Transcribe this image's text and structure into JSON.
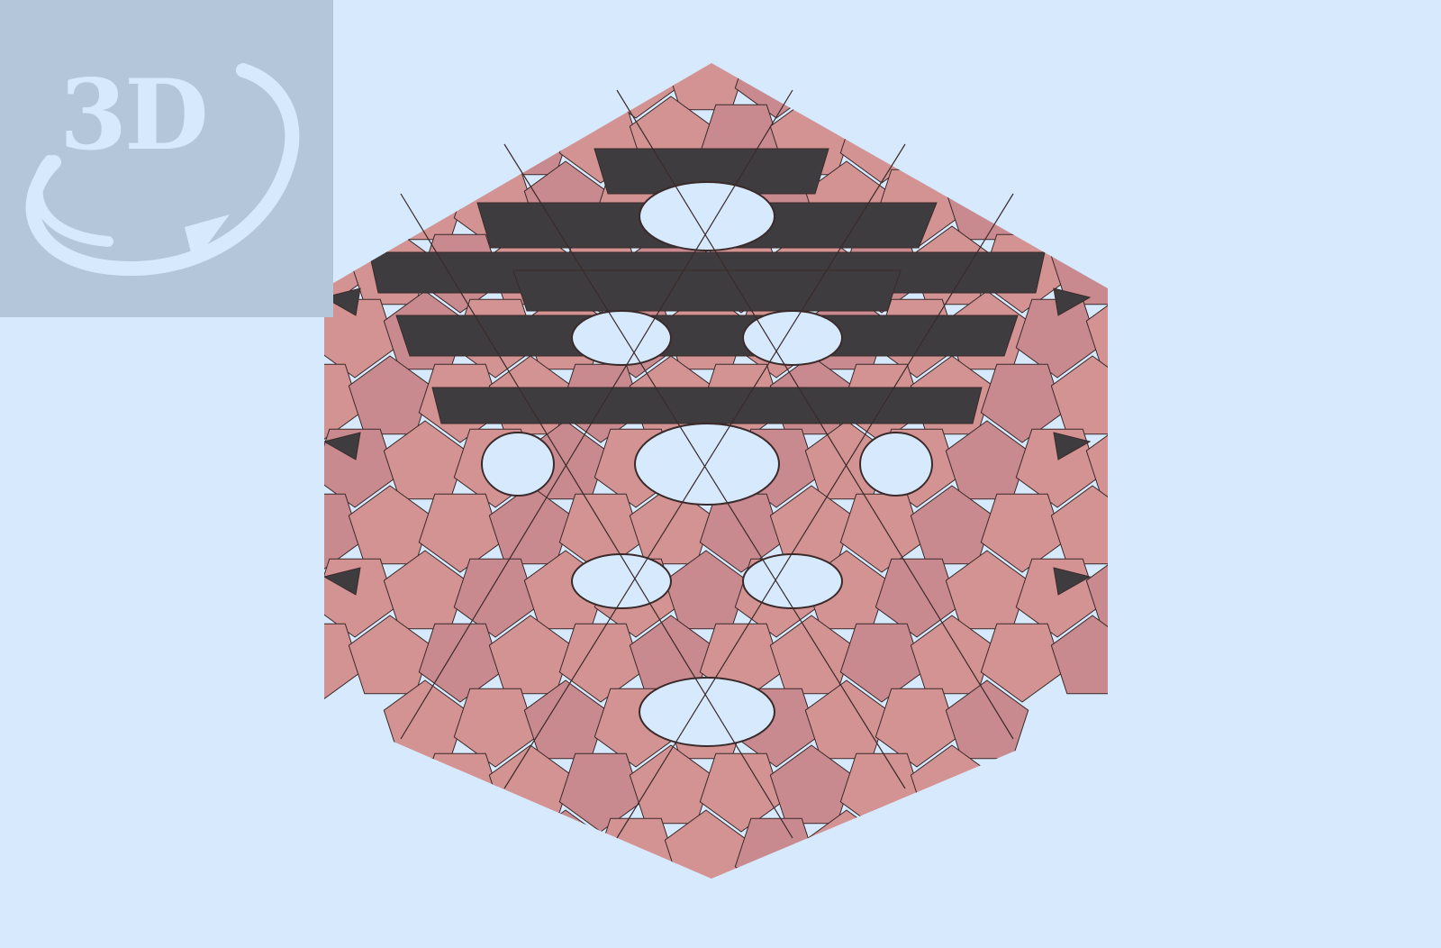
{
  "viewer": {
    "badge": {
      "text": "3D",
      "icon": "rotate-3d-icon"
    },
    "model": {
      "description_icon": "polyhedron-model"
    },
    "colors": {
      "background": "#d6e9fd",
      "badge_background": "#b3c6da",
      "badge_foreground": "#d6e9fd",
      "face_pink": "#d39393",
      "face_pink_alt": "#c98a8f",
      "face_dark": "#3e3c3f",
      "edge": "#3a2a2a"
    }
  }
}
